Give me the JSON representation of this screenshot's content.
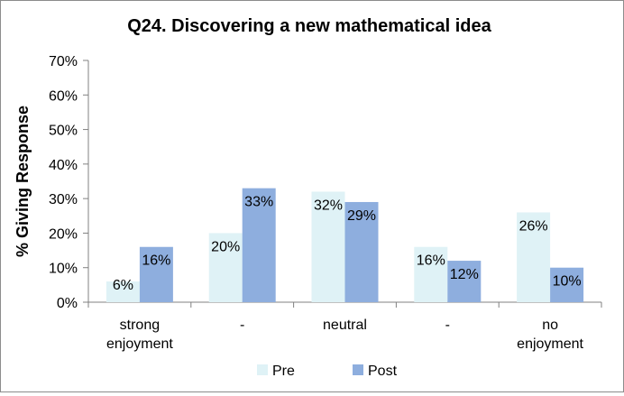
{
  "chart_data": {
    "type": "bar",
    "title": "Q24. Discovering a new mathematical idea",
    "xlabel": "",
    "ylabel": "% Giving Response",
    "ylim": [
      0,
      70
    ],
    "yticks": [
      "0%",
      "10%",
      "20%",
      "30%",
      "40%",
      "50%",
      "60%",
      "70%"
    ],
    "categories": [
      [
        "strong",
        "enjoyment"
      ],
      [
        "-"
      ],
      [
        "neutral"
      ],
      [
        "-"
      ],
      [
        "no",
        "enjoyment"
      ]
    ],
    "series": [
      {
        "name": "Pre",
        "color": "#dff2f6",
        "values": [
          6,
          20,
          32,
          16,
          26
        ],
        "labels": [
          "6%",
          "20%",
          "32%",
          "16%",
          "26%"
        ]
      },
      {
        "name": "Post",
        "color": "#8eaede",
        "values": [
          16,
          33,
          29,
          12,
          10
        ],
        "labels": [
          "16%",
          "33%",
          "29%",
          "12%",
          "10%"
        ]
      }
    ],
    "grid": false,
    "legend_position": "bottom"
  }
}
